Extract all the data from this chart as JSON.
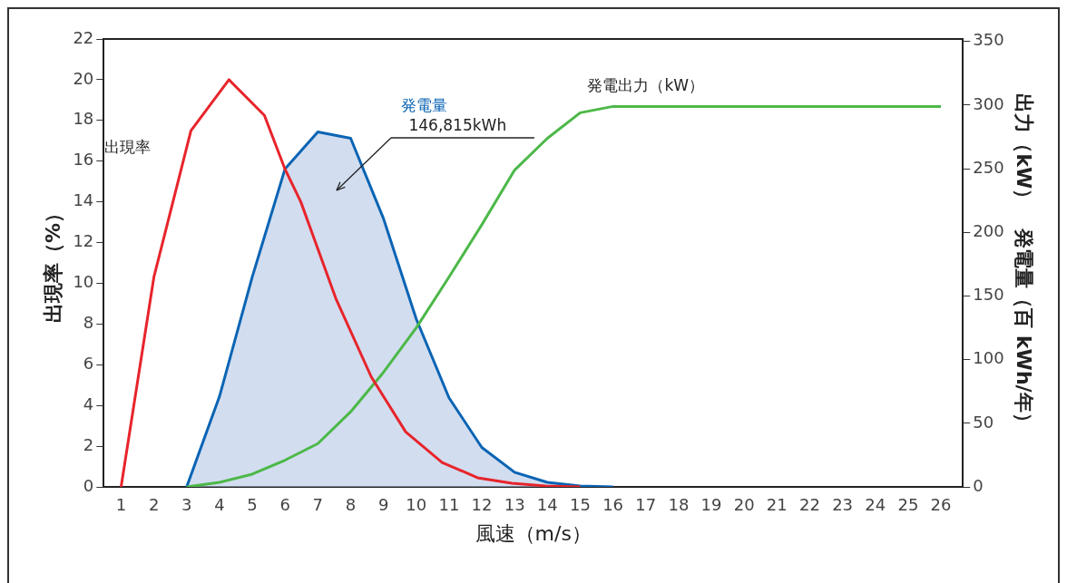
{
  "chart_data": {
    "type": "line",
    "xlabel": "風速（m/s）",
    "ylabel": "出現率（%）",
    "y2label": "出力（kW）　発電量（百 kWh/年）",
    "xlim": [
      0.47,
      26.67
    ],
    "xticks": [
      1,
      2,
      3,
      4,
      5,
      6,
      7,
      8,
      9,
      10,
      11,
      12,
      13,
      14,
      15,
      16,
      17,
      18,
      19,
      20,
      21,
      22,
      23,
      24,
      25,
      26
    ],
    "ylim": [
      0,
      22
    ],
    "yticks": [
      0,
      2,
      4,
      6,
      8,
      10,
      12,
      14,
      16,
      18,
      20,
      22
    ],
    "y2lim": [
      0,
      352
    ],
    "y2ticks": [
      0,
      50,
      100,
      150,
      200,
      250,
      300,
      350
    ],
    "grid": false,
    "legend": false,
    "marker": "none",
    "line_style": "solid",
    "annotations": [
      "146,815kWh"
    ],
    "series": [
      {
        "name": "出現率",
        "type": "line",
        "color": "#e8242b",
        "x": [
          1,
          2,
          3.13,
          4.29,
          5.37,
          6.0,
          6.48,
          7.55,
          8.63,
          9.68,
          10.79,
          11.87,
          12.92,
          13.94,
          15
        ],
        "values": [
          0,
          10.3,
          17.5,
          20.0,
          18.25,
          15.6,
          14.0,
          9.25,
          5.4,
          2.7,
          1.2,
          0.45,
          0.18,
          0.05,
          0
        ]
      },
      {
        "name": "発電量",
        "type": "area",
        "axis": "y2",
        "color": "#0a64b4",
        "x": [
          3,
          4,
          5,
          6,
          7,
          8,
          9,
          10,
          11,
          12,
          13,
          14,
          15,
          16
        ],
        "values": [
          0,
          71,
          165,
          250,
          279,
          274,
          211,
          132,
          70,
          31,
          11.5,
          3.6,
          0.7,
          0
        ]
      },
      {
        "name": "発電出力（kW）",
        "type": "line",
        "axis": "y2",
        "color": "#4cb848",
        "x": [
          3,
          4,
          5,
          6,
          7,
          8,
          9,
          10,
          11,
          12,
          13,
          14,
          15,
          16,
          17,
          18,
          19,
          20,
          21,
          22,
          23,
          24,
          25,
          26
        ],
        "values": [
          0,
          3.6,
          10,
          21,
          34,
          59,
          90,
          125,
          165,
          206,
          249,
          274,
          294,
          299,
          299,
          299,
          299,
          299,
          299,
          299,
          299,
          299,
          299,
          299
        ]
      }
    ]
  }
}
